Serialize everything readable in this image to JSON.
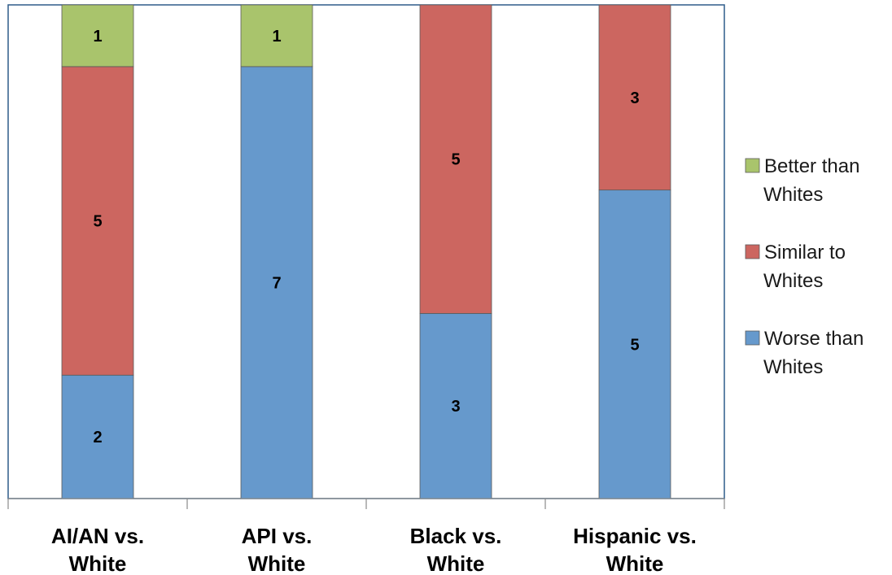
{
  "chart_data": {
    "type": "bar",
    "stacked": true,
    "orientation": "vertical",
    "categories": [
      [
        "AI/AN vs.",
        "White"
      ],
      [
        "API vs.",
        "White"
      ],
      [
        "Black vs.",
        "White"
      ],
      [
        "Hispanic vs.",
        "White"
      ]
    ],
    "series": [
      {
        "name": "Worse than Whites",
        "legend_lines": [
          "Worse than",
          "Whites"
        ],
        "color": "#6699CC",
        "values": [
          2,
          7,
          3,
          5
        ]
      },
      {
        "name": "Similar to Whites",
        "legend_lines": [
          "Similar to",
          "Whites"
        ],
        "color": "#CC6660",
        "values": [
          5,
          0,
          5,
          3
        ]
      },
      {
        "name": "Better than Whites",
        "legend_lines": [
          "Better than",
          "Whites"
        ],
        "color": "#A9C46C",
        "values": [
          1,
          1,
          0,
          0
        ]
      }
    ],
    "ylim": [
      0,
      8
    ],
    "grid": false,
    "legend": "right",
    "axis_color": "#4F81BD",
    "border_color": "#2E5C8A",
    "title": "",
    "xlabel": "",
    "ylabel": ""
  }
}
